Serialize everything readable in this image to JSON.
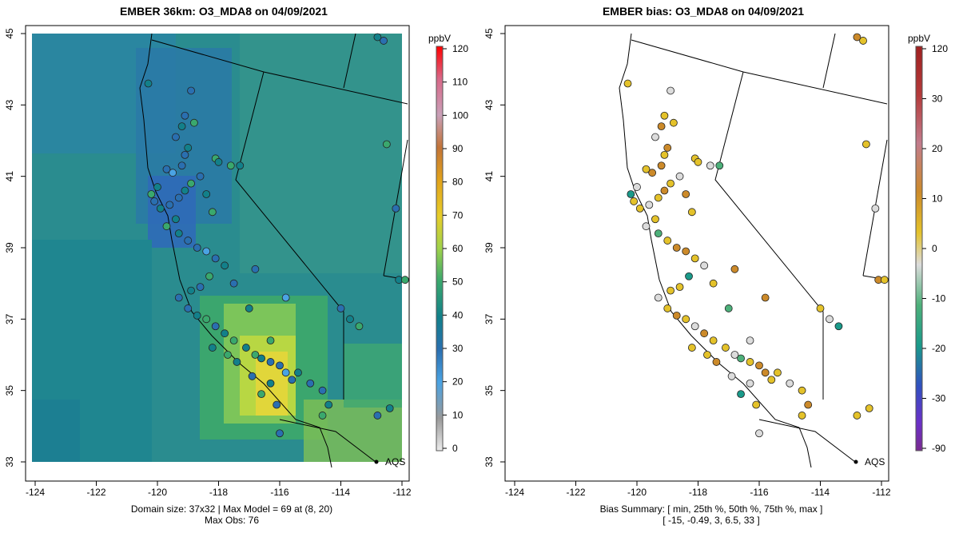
{
  "left": {
    "title": "EMBER 36km: O3_MDA8 on 04/09/2021",
    "footer_line1": "Domain size: 37x32 | Max Model = 69 at (8, 20)",
    "footer_line2": "Max Obs: 76",
    "colorbar_unit": "ppbV",
    "colorbar_ticks": [
      "120",
      "110",
      "100",
      "90",
      "80",
      "70",
      "60",
      "50",
      "40",
      "30",
      "20",
      "10",
      "0"
    ],
    "colorbar_colors": [
      "#ff0000",
      "#d86888",
      "#c9a0b8",
      "#c27438",
      "#e1a21b",
      "#e7cd2a",
      "#9fd24b",
      "#3aa86d",
      "#12808a",
      "#2a6fb0",
      "#4aa3e3",
      "#9a9a9a",
      "#d7d7d7"
    ]
  },
  "right": {
    "title": "EMBER bias: O3_MDA8 on 04/09/2021",
    "footer_line1": "Bias Summary: [ min, 25th %, 50th %, 75th %, max ]",
    "footer_line2": "[ -15,   -0.49,   3,   6.5,   33 ]",
    "colorbar_unit": "ppbV",
    "colorbar_ticks": [
      "120",
      "30",
      "20",
      "10",
      "0",
      "-10",
      "-20",
      "-30",
      "-90"
    ],
    "colorbar_colors": [
      "#a02020",
      "#b43a3a",
      "#c27c8c",
      "#cc8a2a",
      "#e4c22a",
      "#dcdcdc",
      "#4db07a",
      "#1a9a8a",
      "#3050c0",
      "#6a30c8",
      "#7a2a90"
    ]
  },
  "axes": {
    "x_ticks": [
      "-124",
      "-122",
      "-120",
      "-118",
      "-116",
      "-114",
      "-112"
    ],
    "y_ticks": [
      "45",
      "43",
      "41",
      "39",
      "37",
      "35",
      "33"
    ]
  },
  "marker_label": "AQS",
  "map_data": {
    "lon_range": [
      -124,
      -112
    ],
    "lat_range": [
      33,
      45
    ],
    "stations": [
      [
        -120.3,
        43.6
      ],
      [
        -118.9,
        43.4
      ],
      [
        -119.1,
        42.7
      ],
      [
        -119.2,
        42.4
      ],
      [
        -118.8,
        42.5
      ],
      [
        -119.4,
        42.1
      ],
      [
        -119.0,
        41.8
      ],
      [
        -118.1,
        41.5
      ],
      [
        -118.0,
        41.4
      ],
      [
        -117.6,
        41.3
      ],
      [
        -117.3,
        41.3
      ],
      [
        -119.1,
        41.6
      ],
      [
        -119.2,
        41.3
      ],
      [
        -119.5,
        41.1
      ],
      [
        -119.7,
        41.2
      ],
      [
        -120.0,
        40.7
      ],
      [
        -120.2,
        40.5
      ],
      [
        -120.1,
        40.3
      ],
      [
        -119.9,
        40.1
      ],
      [
        -119.6,
        40.2
      ],
      [
        -119.3,
        40.4
      ],
      [
        -119.1,
        40.6
      ],
      [
        -118.9,
        40.8
      ],
      [
        -118.6,
        41.0
      ],
      [
        -118.4,
        40.5
      ],
      [
        -118.2,
        40.0
      ],
      [
        -119.4,
        39.8
      ],
      [
        -119.7,
        39.6
      ],
      [
        -119.3,
        39.4
      ],
      [
        -119.0,
        39.2
      ],
      [
        -118.7,
        39.0
      ],
      [
        -118.4,
        38.9
      ],
      [
        -118.1,
        38.7
      ],
      [
        -117.8,
        38.5
      ],
      [
        -118.3,
        38.2
      ],
      [
        -118.6,
        37.9
      ],
      [
        -118.9,
        37.8
      ],
      [
        -119.3,
        37.6
      ],
      [
        -119.0,
        37.3
      ],
      [
        -118.7,
        37.1
      ],
      [
        -118.4,
        37.0
      ],
      [
        -118.1,
        36.8
      ],
      [
        -117.8,
        36.6
      ],
      [
        -117.5,
        36.4
      ],
      [
        -117.1,
        36.2
      ],
      [
        -116.8,
        36.0
      ],
      [
        -116.6,
        35.9
      ],
      [
        -116.3,
        35.8
      ],
      [
        -116.0,
        35.7
      ],
      [
        -115.8,
        35.5
      ],
      [
        -115.6,
        35.3
      ],
      [
        -116.3,
        35.2
      ],
      [
        -116.6,
        34.9
      ],
      [
        -116.1,
        34.6
      ],
      [
        -115.4,
        35.5
      ],
      [
        -115.0,
        35.2
      ],
      [
        -114.6,
        35.0
      ],
      [
        -114.4,
        34.6
      ],
      [
        -114.6,
        34.3
      ],
      [
        -116.9,
        35.4
      ],
      [
        -117.4,
        35.8
      ],
      [
        -117.7,
        36.0
      ],
      [
        -118.2,
        36.2
      ],
      [
        -116.3,
        36.4
      ],
      [
        -117.0,
        37.3
      ],
      [
        -117.5,
        38.0
      ],
      [
        -116.8,
        38.4
      ],
      [
        -115.8,
        37.6
      ],
      [
        -114.0,
        37.3
      ],
      [
        -113.7,
        37.0
      ],
      [
        -113.4,
        36.8
      ],
      [
        -112.8,
        34.3
      ],
      [
        -112.4,
        34.5
      ],
      [
        -116.0,
        33.8
      ],
      [
        -112.6,
        44.8
      ],
      [
        -112.8,
        44.9
      ],
      [
        -112.5,
        41.9
      ],
      [
        -112.2,
        40.1
      ],
      [
        -112.1,
        38.1
      ],
      [
        -111.9,
        38.1
      ]
    ]
  }
}
